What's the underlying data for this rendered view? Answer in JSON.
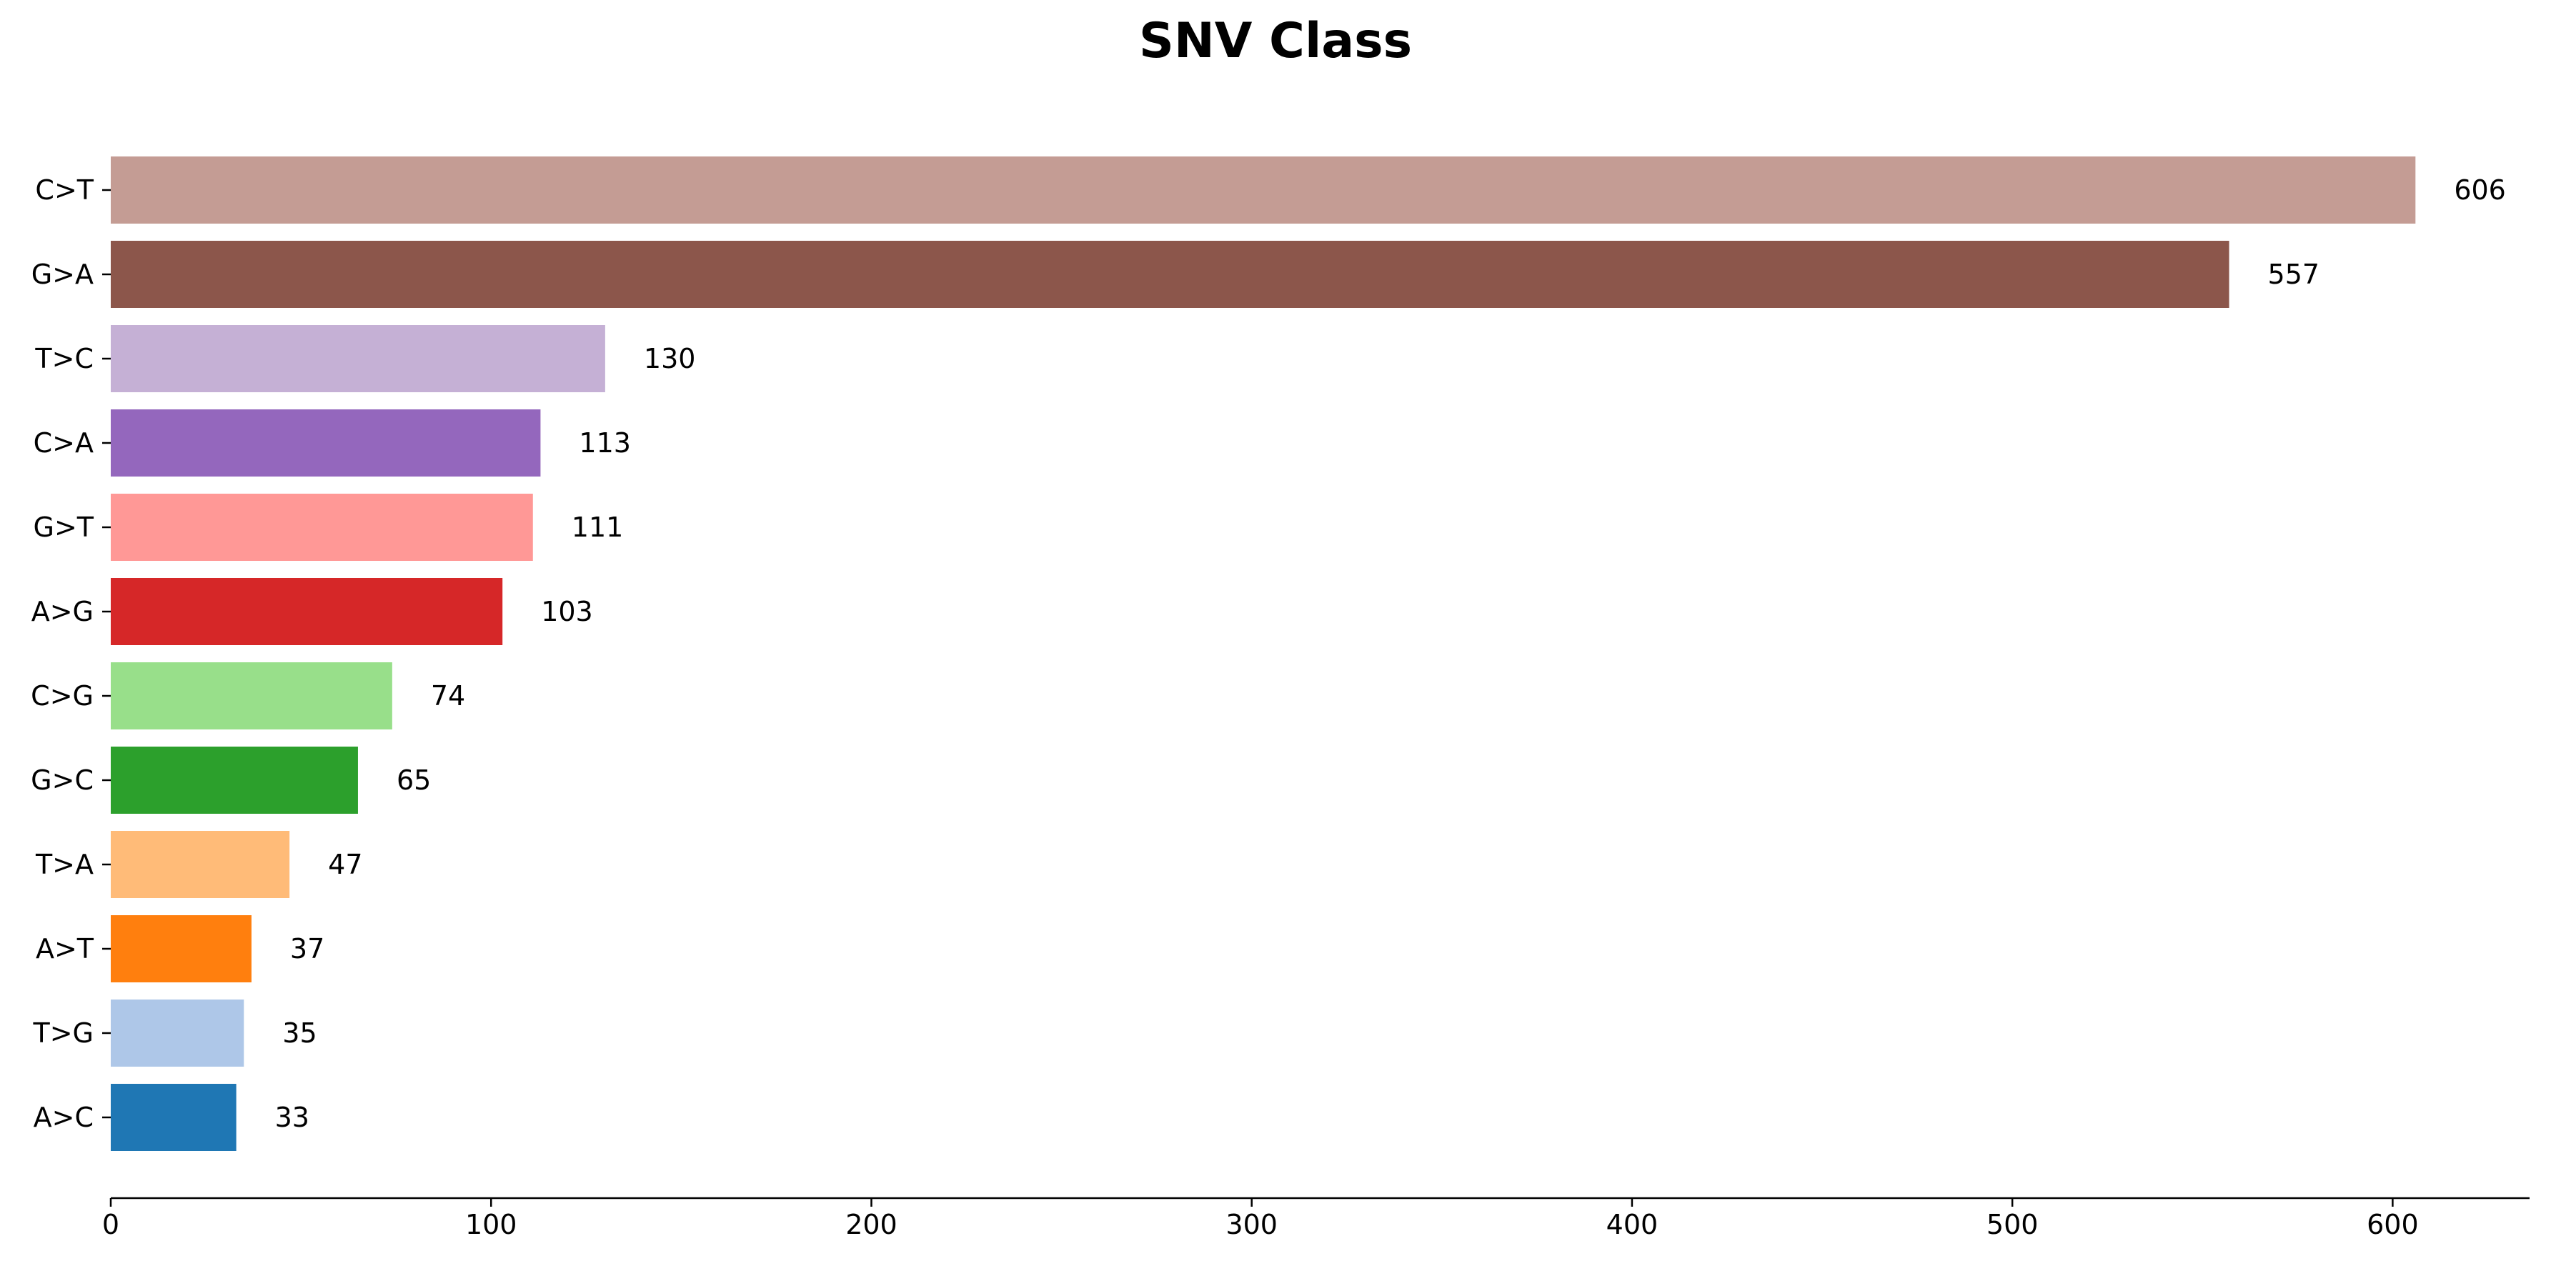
{
  "chart_data": {
    "type": "bar",
    "orientation": "horizontal",
    "title": "SNV Class",
    "xlabel": "",
    "ylabel": "",
    "xlim": [
      0,
      636
    ],
    "xticks": [
      0,
      100,
      200,
      300,
      400,
      500,
      600
    ],
    "grid": false,
    "legend": "none",
    "categories": [
      "C>T",
      "G>A",
      "T>C",
      "C>A",
      "G>T",
      "A>G",
      "C>G",
      "G>C",
      "T>A",
      "A>T",
      "T>G",
      "A>C"
    ],
    "values": [
      606,
      557,
      130,
      113,
      111,
      103,
      74,
      65,
      47,
      37,
      35,
      33
    ],
    "colors": [
      "#c49c94",
      "#8c564b",
      "#c5b0d5",
      "#9467bd",
      "#ff9896",
      "#d62728",
      "#98df8a",
      "#2ca02c",
      "#ffbb78",
      "#ff7f0e",
      "#aec7e8",
      "#1f77b4"
    ]
  }
}
